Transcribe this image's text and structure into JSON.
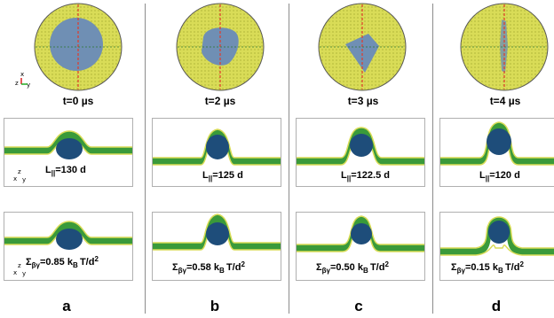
{
  "columns": [
    {
      "time": "t=0 µs",
      "length": "130 d",
      "tension": "=0.85 k",
      "letter": "a"
    },
    {
      "time": "t=2 µs",
      "length": "125 d",
      "tension": "=0.58 k",
      "letter": "b"
    },
    {
      "time": "t=3 µs",
      "length": "122.5 d",
      "tension": "=0.50 k",
      "letter": "c"
    },
    {
      "time": "t=4 µs",
      "length": "120 d",
      "tension": "=0.15 k",
      "letter": "d"
    }
  ],
  "symbols": {
    "L": "L",
    "parallel": "||",
    "sigma": "Σ",
    "beta_gamma": "βγ",
    "B": "B",
    "T_over_d": "T/d",
    "sq": "2"
  },
  "axis_labels": {
    "x": "x",
    "y": "y",
    "z": "z"
  },
  "colors": {
    "lipid": "#d9dc57",
    "membrane_green": "#3a9a3a",
    "particle": "#1e4d7a",
    "domain_blue": "#6f8fb4",
    "dashed_red": "#e23a2a"
  }
}
